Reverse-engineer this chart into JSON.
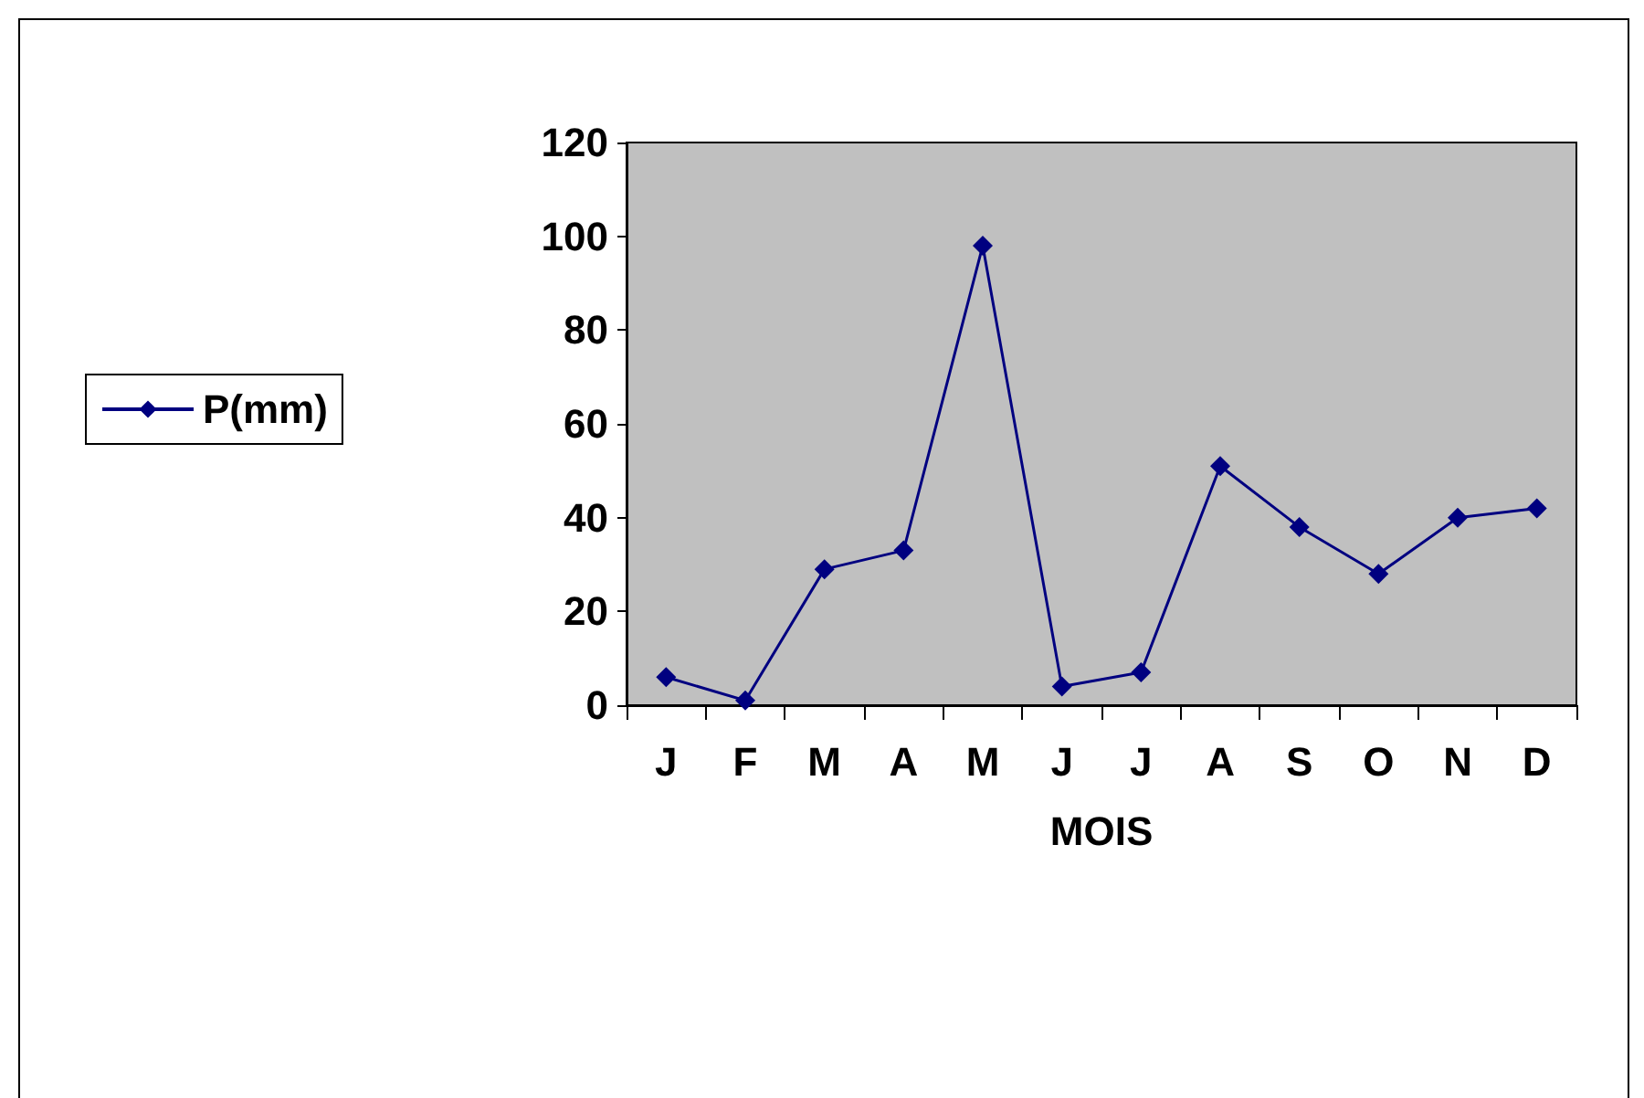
{
  "chart_data": {
    "type": "line",
    "xlabel": "MOIS",
    "categories": [
      "J",
      "F",
      "M",
      "A",
      "M",
      "J",
      "J",
      "A",
      "S",
      "O",
      "N",
      "D"
    ],
    "series": [
      {
        "name": "P(mm)",
        "color": "#000080",
        "values": [
          6,
          1,
          29,
          33,
          98,
          4,
          7,
          51,
          38,
          28,
          40,
          42
        ]
      }
    ],
    "ylim": [
      0,
      120
    ],
    "yticks": [
      0,
      20,
      40,
      60,
      80,
      100,
      120
    ],
    "grid": false,
    "legend": "left",
    "marker": "diamond",
    "line_style": "solid"
  }
}
